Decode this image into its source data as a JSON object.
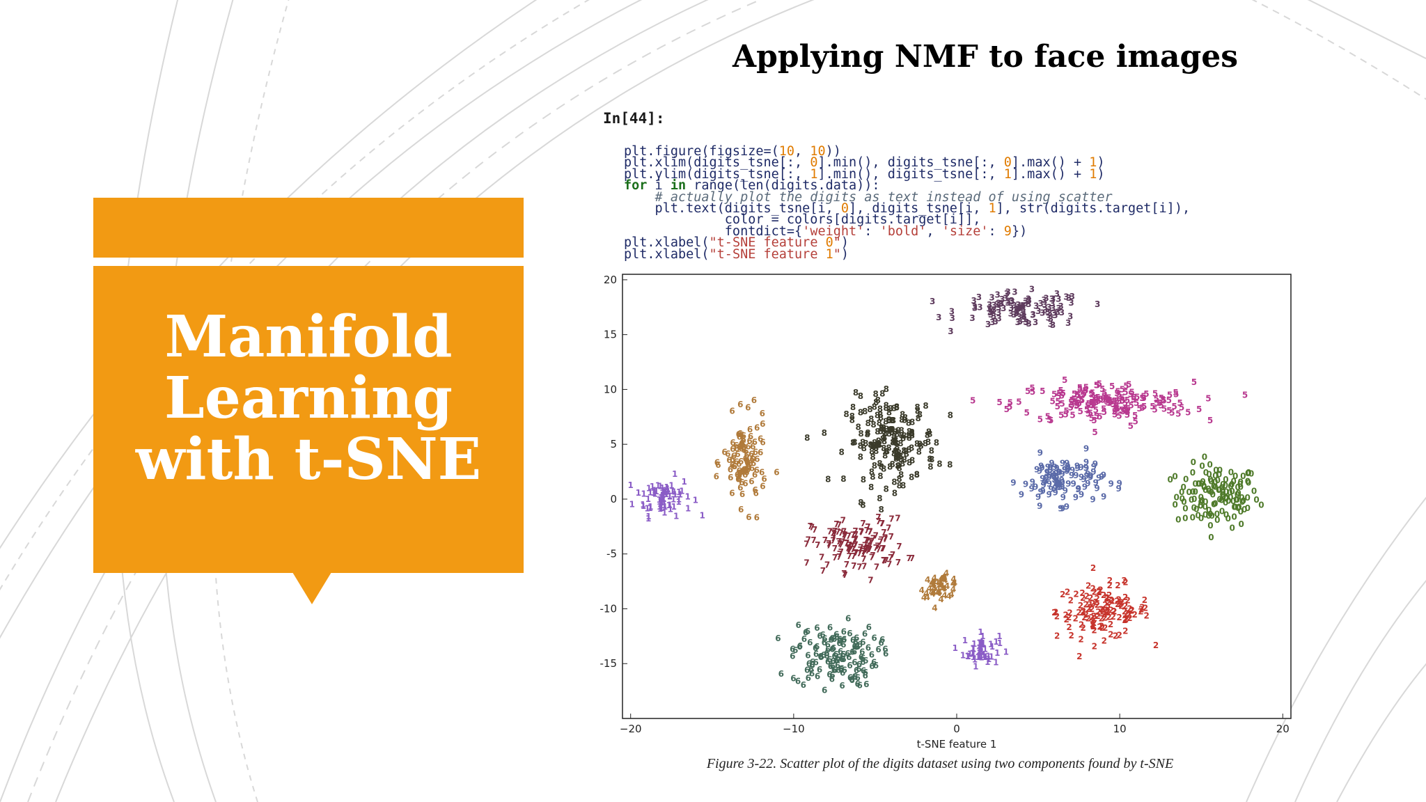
{
  "slide": {
    "title_lines": [
      "Manifold",
      "Learning",
      "with t-SNE"
    ],
    "heading": "Applying NMF to face images",
    "accent_color": "#f29a13"
  },
  "code_cell": {
    "prompt": "In[44]:",
    "lines": [
      "plt.figure(figsize=(10, 10))",
      "plt.xlim(digits_tsne[:, 0].min(), digits_tsne[:, 0].max() + 1)",
      "plt.ylim(digits_tsne[:, 1].min(), digits_tsne[:, 1].max() + 1)",
      "for i in range(len(digits.data)):",
      "    # actually plot the digits as text instead of using scatter",
      "    plt.text(digits_tsne[i, 0], digits_tsne[i, 1], str(digits.target[i]),",
      "             color = colors[digits.target[i]],",
      "             fontdict={'weight': 'bold', 'size': 9})",
      "plt.xlabel(\"t-SNE feature 0\")",
      "plt.xlabel(\"t-SNE feature 1\")"
    ]
  },
  "chart_data": {
    "type": "scatter",
    "title": "",
    "xlabel": "t-SNE feature 1",
    "ylabel": "",
    "xlim": [
      -20.5,
      20.5
    ],
    "ylim": [
      -20,
      20.5
    ],
    "xticks": [
      -20,
      -10,
      0,
      10,
      20
    ],
    "yticks": [
      -15,
      -10,
      -5,
      0,
      5,
      10,
      15,
      20
    ],
    "grid": false,
    "series": [
      {
        "name": "0",
        "color": "#4f7a2a",
        "center": [
          16,
          0
        ],
        "spread": [
          2.3,
          2.6
        ]
      },
      {
        "name": "1",
        "color": "#8a5cc6",
        "center": [
          -18,
          0
        ],
        "spread": [
          1.6,
          1.6
        ]
      },
      {
        "name": "1",
        "color": "#8a5cc6",
        "center": [
          1.5,
          -14
        ],
        "spread": [
          1,
          1.3
        ]
      },
      {
        "name": "2",
        "color": "#c7342c",
        "center": [
          9,
          -10.5
        ],
        "spread": [
          2.6,
          2.2
        ]
      },
      {
        "name": "3",
        "color": "#5d3a5c",
        "center": [
          4,
          17
        ],
        "spread": [
          3.5,
          1.4
        ]
      },
      {
        "name": "4",
        "color": "#b07a3a",
        "center": [
          -1,
          -8.2
        ],
        "spread": [
          1.1,
          0.9
        ]
      },
      {
        "name": "5",
        "color": "#b8388f",
        "center": [
          9,
          8.5
        ],
        "spread": [
          5,
          1.7
        ]
      },
      {
        "name": "6",
        "color": "#426b5a",
        "center": [
          -7.5,
          -14.5
        ],
        "spread": [
          2.4,
          2.6
        ]
      },
      {
        "name": "7",
        "color": "#8a2a3a",
        "center": [
          -6,
          -4.5
        ],
        "spread": [
          2.6,
          2.2
        ]
      },
      {
        "name": "8",
        "color": "#3a3a2a",
        "center": [
          -4,
          5
        ],
        "spread": [
          2.5,
          3.6
        ]
      },
      {
        "name": "9",
        "color": "#5a6aa8",
        "center": [
          6.5,
          1.5
        ],
        "spread": [
          2.3,
          2
        ]
      },
      {
        "name": "6",
        "color": "#b07a3a",
        "center": [
          -13,
          3
        ],
        "spread": [
          1.2,
          3.6
        ]
      }
    ]
  },
  "caption": "Figure 3-22. Scatter plot of the digits dataset using two components found by t-SNE"
}
